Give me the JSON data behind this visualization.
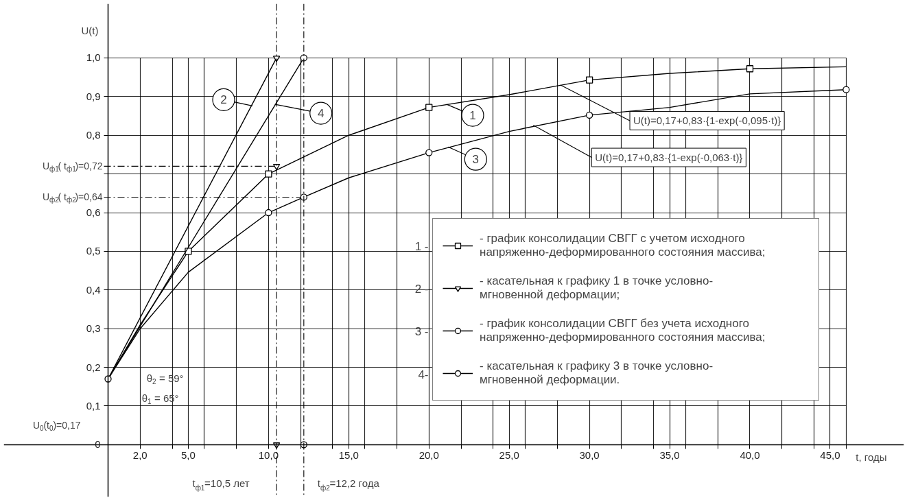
{
  "chart_data": {
    "type": "line",
    "xlim": [
      -6.5,
      49.6
    ],
    "ylim": [
      -0.135,
      1.14
    ],
    "xticks": [
      {
        "value": 2,
        "label": "2,0"
      },
      {
        "value": 4,
        "label": null
      },
      {
        "value": 5,
        "label": "5,0"
      },
      {
        "value": 6,
        "label": null
      },
      {
        "value": 8,
        "label": null
      },
      {
        "value": 10,
        "label": "10,0"
      },
      {
        "value": 12,
        "label": null
      },
      {
        "value": 14,
        "label": null
      },
      {
        "value": 15,
        "label": "15,0"
      },
      {
        "value": 16,
        "label": null
      },
      {
        "value": 18,
        "label": null
      },
      {
        "value": 20,
        "label": "20,0"
      },
      {
        "value": 22,
        "label": null
      },
      {
        "value": 24,
        "label": null
      },
      {
        "value": 25,
        "label": "25,0"
      },
      {
        "value": 26,
        "label": null
      },
      {
        "value": 28,
        "label": null
      },
      {
        "value": 30,
        "label": "30,0"
      },
      {
        "value": 32,
        "label": null
      },
      {
        "value": 34,
        "label": null
      },
      {
        "value": 35,
        "label": "35,0"
      },
      {
        "value": 36,
        "label": null
      },
      {
        "value": 38,
        "label": null
      },
      {
        "value": 40,
        "label": "40,0"
      },
      {
        "value": 42,
        "label": null
      },
      {
        "value": 44,
        "label": null
      },
      {
        "value": 45,
        "label": "45,0"
      },
      {
        "value": 46,
        "label": null
      }
    ],
    "yticks": [
      0,
      {
        "value": 0.1,
        "label": "0,1"
      },
      {
        "value": 0.2,
        "label": "0,2"
      },
      {
        "value": 0.3,
        "label": "0,3"
      },
      {
        "value": 0.4,
        "label": "0,4"
      },
      {
        "value": 0.5,
        "label": "0,5"
      },
      {
        "value": 0.6,
        "label": "0,6"
      },
      {
        "value": 0.7,
        "label": null
      },
      {
        "value": 0.8,
        "label": "0,8"
      },
      {
        "value": 0.9,
        "label": "0,9"
      },
      {
        "value": 1.0,
        "label": "1,0"
      }
    ],
    "xlabel": "t, годы",
    "ylabel": "U(t)",
    "grid": true,
    "legend": "bottom right",
    "series": [
      {
        "name": "- график консолидации СВГГ с учетом исходного напряженно-деформированного состояния массива;",
        "color": "#000000",
        "x": [
          0,
          2,
          5,
          10,
          15,
          20,
          25,
          30,
          35,
          40,
          46
        ],
        "values": [
          0.17,
          0.31,
          0.5,
          0.7,
          0.8,
          0.872,
          0.905,
          0.943,
          0.96,
          0.972,
          0.977
        ]
      },
      {
        "type": "scatter",
        "color": "#000000",
        "marker": "square",
        "x": [
          5,
          10,
          20,
          30,
          40
        ],
        "values": [
          0.5,
          0.7,
          0.872,
          0.943,
          0.972
        ]
      },
      {
        "name": "- касательная к графику 1 в точке условно-мгновенной деформации;",
        "color": "#000000",
        "x": [
          0,
          10.5
        ],
        "values": [
          0.17,
          1.0
        ]
      },
      {
        "type": "scatter",
        "color": "#000000",
        "marker": "triangle",
        "x": [
          10.5,
          10.5,
          10.5
        ],
        "values": [
          1.0,
          0.72,
          0.0
        ]
      },
      {
        "name": "- график консолидации СВГГ без учета исходного напряженно-деформированного состояния массива;",
        "color": "#000000",
        "x": [
          0,
          2,
          5,
          10,
          12.2,
          15,
          20,
          25,
          30,
          35,
          40,
          46
        ],
        "values": [
          0.17,
          0.3,
          0.446,
          0.6,
          0.64,
          0.69,
          0.755,
          0.81,
          0.852,
          0.872,
          0.907,
          0.918
        ]
      },
      {
        "type": "scatter",
        "color": "#000000",
        "marker": "circle",
        "x": [
          10,
          20,
          30,
          46
        ],
        "values": [
          0.6,
          0.755,
          0.852,
          0.918
        ]
      },
      {
        "name": "- касательная к графику 3 в точке условно-мгновенной деформации.",
        "color": "#000000",
        "x": [
          0,
          12.2
        ],
        "values": [
          0.17,
          1.0
        ]
      },
      {
        "type": "scatter",
        "color": "#000000",
        "marker": "circle",
        "x": [
          0,
          12.2,
          12.2,
          12.2
        ],
        "values": [
          0.17,
          1.0,
          0.64,
          0.0
        ]
      }
    ],
    "ref_lines": [
      {
        "axis": "y",
        "value": 0.72,
        "label": "U$_{ф1}$( t$_{ф1}$)=0,72",
        "line_style": "dashed"
      },
      {
        "axis": "y",
        "value": 0.64,
        "label": "U$_{ф2}$( t$_{ф2}$)=0,64",
        "line_style": "dashed"
      },
      {
        "axis": "x",
        "value": 10.5,
        "label": "t$_{ф1}$=10,5 лет",
        "line_style": "dashed"
      },
      {
        "axis": "x",
        "value": 12.2,
        "label": "t$_{ф2}$=12,2 года",
        "line_style": "dashed"
      }
    ],
    "annotations": [
      {
        "text": "1",
        "x": 21.1,
        "y": 0.88
      },
      {
        "text": "2",
        "x": 9.0,
        "y": 0.876
      },
      {
        "text": "3",
        "x": 21.2,
        "y": 0.77
      },
      {
        "text": "4",
        "x": 10.4,
        "y": 0.88
      },
      {
        "text": "U(t)=0,17+0,83·{1-exp(-0,095·t)}",
        "x": 28.2,
        "y": 0.93
      },
      {
        "text": "U(t)=0,17+0,83·{1-exp(-0,063·t)}",
        "x": 26.5,
        "y": 0.826
      },
      "θ$_{2}$ = 59°",
      "θ$_{1}$ = 65°",
      "U$_{0}$(t$_{0}$)=0,17",
      "1 -",
      "2 -",
      "3 -",
      "4-"
    ]
  }
}
